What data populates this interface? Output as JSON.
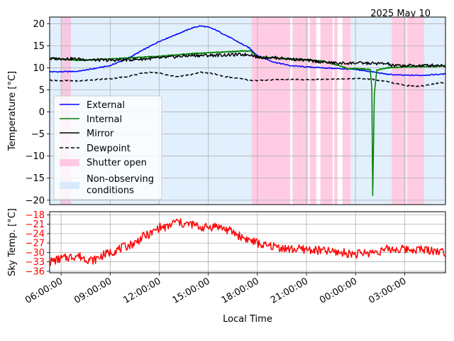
{
  "date_label": "2025 May 10",
  "colors": {
    "external": "#0000ff",
    "internal": "#008000",
    "mirror": "#000000",
    "dewpoint": "#000000",
    "shutter": "#ffb6d9",
    "nonobs": "#d7ebfb",
    "sky": "#ff0000"
  },
  "chart_data": [
    {
      "type": "line",
      "title": "",
      "xlabel": "",
      "ylabel": "Temperature [°C]",
      "xlim_hours": [
        5.3,
        29.5
      ],
      "ylim": [
        -21,
        21.5
      ],
      "yticks": [
        20,
        15,
        10,
        5,
        0,
        -5,
        -10,
        -15,
        -20
      ],
      "ytick_labels": [
        "20",
        "15",
        "10",
        "5",
        "0",
        "−5",
        "−10",
        "−15",
        "−20"
      ],
      "grid": true,
      "legend_position": "lower-left",
      "shutter_open_periods_hours": [
        [
          6.0,
          6.6
        ],
        [
          17.65,
          20.0
        ],
        [
          20.15,
          21.1
        ],
        [
          21.2,
          21.6
        ],
        [
          21.85,
          22.6
        ],
        [
          22.7,
          22.9
        ],
        [
          23.2,
          23.7
        ],
        [
          26.2,
          27.1
        ],
        [
          27.15,
          28.2
        ]
      ],
      "non_observing_periods_hours": [
        [
          5.3,
          17.65
        ],
        [
          23.7,
          26.2
        ],
        [
          28.2,
          29.5
        ]
      ],
      "series": [
        {
          "name": "External",
          "style": "solid",
          "x": [
            5.3,
            6.0,
            7.0,
            8.0,
            9.0,
            10.0,
            11.0,
            12.0,
            13.0,
            14.0,
            14.5,
            15.0,
            15.5,
            16.0,
            16.5,
            17.0,
            17.5,
            18.0,
            19.0,
            20.0,
            21.0,
            22.0,
            23.0,
            24.0,
            25.0,
            26.0,
            27.0,
            28.0,
            29.0,
            29.5
          ],
          "y": [
            9.1,
            9.1,
            9.2,
            9.8,
            10.5,
            12.0,
            14.0,
            16.0,
            17.5,
            19.0,
            19.5,
            19.2,
            18.5,
            17.5,
            16.5,
            15.5,
            14.5,
            12.8,
            11.3,
            10.5,
            10.2,
            10.0,
            9.8,
            9.6,
            9.1,
            8.5,
            8.3,
            8.3,
            8.5,
            8.6
          ]
        },
        {
          "name": "Internal",
          "style": "solid",
          "x": [
            5.3,
            6.0,
            6.5,
            7.0,
            8.0,
            9.0,
            10.0,
            11.0,
            12.0,
            13.0,
            14.0,
            15.0,
            16.0,
            17.0,
            17.6,
            18.0,
            19.0,
            20.0,
            21.0,
            22.0,
            23.0,
            23.5,
            24.0,
            24.9,
            25.0,
            25.05,
            25.15,
            25.3,
            26.0,
            27.0,
            28.0,
            29.0,
            29.5
          ],
          "y": [
            12.2,
            12.0,
            11.8,
            11.7,
            11.8,
            12.0,
            12.2,
            12.4,
            12.6,
            12.9,
            13.2,
            13.4,
            13.6,
            13.8,
            13.8,
            12.4,
            12.3,
            12.0,
            11.8,
            11.5,
            10.5,
            9.8,
            9.8,
            9.6,
            5.0,
            -19.0,
            4.0,
            9.5,
            10.0,
            10.2,
            10.3,
            10.3,
            10.5
          ]
        },
        {
          "name": "Mirror",
          "style": "solid",
          "x": [
            5.3,
            6.0,
            7.0,
            8.0,
            9.0,
            10.0,
            11.0,
            12.0,
            13.0,
            14.0,
            15.0,
            16.0,
            17.0,
            17.6,
            18.0,
            19.0,
            20.0,
            21.0,
            22.0,
            23.0,
            24.0,
            25.0,
            26.0,
            26.2,
            27.0,
            28.0,
            29.0,
            29.5
          ],
          "y": [
            12.0,
            12.1,
            12.0,
            11.8,
            11.7,
            11.8,
            12.0,
            12.2,
            12.5,
            12.8,
            12.8,
            12.9,
            13.0,
            13.0,
            12.4,
            12.3,
            12.0,
            11.7,
            11.3,
            11.0,
            11.1,
            11.0,
            10.9,
            10.5,
            10.5,
            10.5,
            10.6,
            10.5
          ]
        },
        {
          "name": "Dewpoint",
          "style": "dashed",
          "x": [
            5.3,
            6.0,
            7.0,
            8.0,
            9.0,
            10.0,
            11.0,
            11.5,
            12.0,
            13.0,
            14.0,
            14.5,
            15.0,
            15.5,
            16.0,
            17.0,
            17.5,
            18.0,
            19.0,
            20.0,
            21.0,
            22.0,
            23.0,
            24.0,
            25.0,
            26.0,
            27.0,
            28.0,
            28.5,
            29.0,
            29.5
          ],
          "y": [
            7.2,
            7.1,
            7.0,
            7.3,
            7.5,
            8.0,
            8.8,
            9.0,
            8.8,
            8.0,
            8.5,
            9.0,
            8.8,
            8.5,
            8.0,
            7.5,
            7.2,
            7.1,
            7.3,
            7.4,
            7.3,
            7.4,
            7.5,
            7.6,
            7.4,
            6.8,
            6.0,
            5.8,
            6.2,
            6.5,
            6.6
          ]
        }
      ]
    },
    {
      "type": "line",
      "title": "",
      "xlabel": "Local Time",
      "ylabel": "Sky Temp. [°C]",
      "xlim_hours": [
        5.3,
        29.5
      ],
      "ylim": [
        -36.5,
        -17
      ],
      "yticks": [
        -18,
        -21,
        -24,
        -27,
        -30,
        -33,
        -36
      ],
      "ytick_labels": [
        "−18",
        "−21",
        "−24",
        "−27",
        "−30",
        "−33",
        "−36"
      ],
      "xticks_hours": [
        6,
        9,
        12,
        15,
        18,
        21,
        24,
        27
      ],
      "xtick_labels": [
        "06:00:00",
        "09:00:00",
        "12:00:00",
        "15:00:00",
        "18:00:00",
        "21:00:00",
        "00:00:00",
        "03:00:00"
      ],
      "grid": true,
      "series": [
        {
          "name": "",
          "x": [
            5.3,
            6.0,
            6.5,
            7.0,
            7.5,
            8.0,
            8.5,
            9.0,
            9.5,
            10.0,
            10.5,
            11.0,
            11.5,
            12.0,
            12.5,
            13.0,
            13.5,
            14.0,
            14.5,
            15.0,
            15.5,
            16.0,
            16.5,
            17.0,
            17.5,
            18.0,
            18.5,
            19.0,
            20.0,
            21.0,
            22.0,
            23.0,
            24.0,
            25.0,
            26.0,
            27.0,
            28.0,
            29.0,
            29.5
          ],
          "y": [
            -33,
            -32,
            -31.5,
            -31,
            -32,
            -32.5,
            -31,
            -30,
            -29,
            -28,
            -27,
            -25,
            -24,
            -22,
            -22,
            -20,
            -21,
            -21,
            -22,
            -22,
            -21.5,
            -22.5,
            -23.5,
            -25,
            -26,
            -27,
            -28,
            -28,
            -29,
            -29,
            -29.5,
            -30,
            -30.5,
            -30,
            -29,
            -29,
            -29,
            -29.5,
            -30
          ]
        }
      ]
    }
  ]
}
